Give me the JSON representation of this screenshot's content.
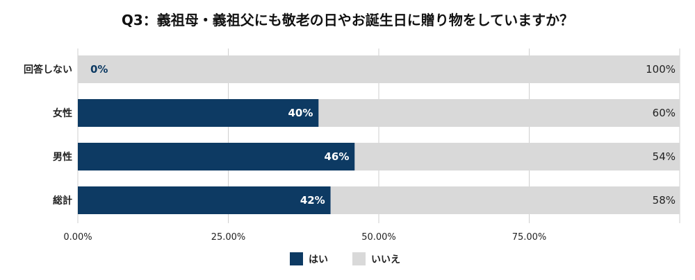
{
  "chart_data": {
    "type": "bar",
    "orientation": "horizontal",
    "stacked": true,
    "title": "Q3：義祖母・義祖父にも敬老の日やお誕生日に贈り物をしていますか？",
    "categories": [
      "回答しない",
      "女性",
      "男性",
      "総計"
    ],
    "series": [
      {
        "name": "はい",
        "values": [
          0,
          40,
          46,
          42
        ],
        "labels": [
          "0%",
          "40%",
          "46%",
          "42%"
        ],
        "color": "#0d3a63"
      },
      {
        "name": "いいえ",
        "values": [
          100,
          60,
          54,
          58
        ],
        "labels": [
          "100%",
          "60%",
          "54%",
          "58%"
        ],
        "color": "#d9d9d9"
      }
    ],
    "xlim": [
      0,
      100
    ],
    "x_ticks": [
      0,
      25,
      50,
      75
    ],
    "x_tick_labels": [
      "0.00%",
      "25.00%",
      "50.00%",
      "75.00%"
    ],
    "grid": true,
    "legend_position": "bottom"
  }
}
